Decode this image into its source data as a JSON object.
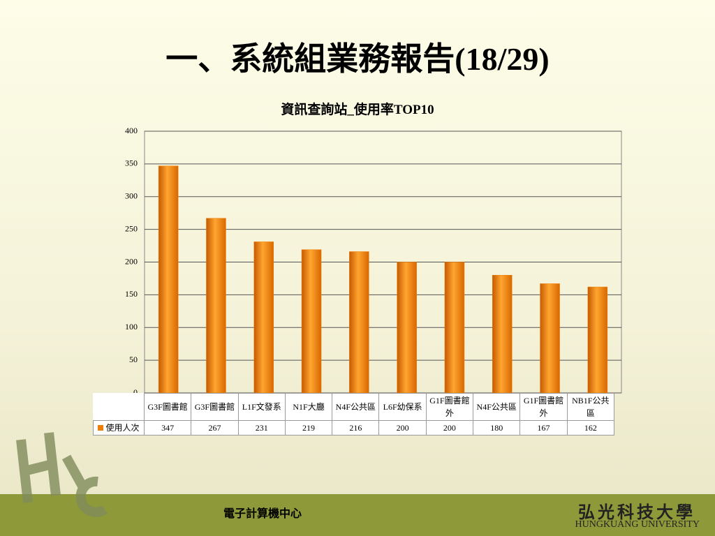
{
  "page_title": "一、系統組業務報告(18/29)",
  "chart_data": {
    "type": "bar",
    "title": "資訊查詢站_使用率TOP10",
    "categories": [
      "G3F圖書館",
      "G3F圖書館",
      "L1F文發系",
      "N1F大廳",
      "N4F公共區",
      "L6F幼保系",
      "G1F圖書館外",
      "N4F公共區",
      "G1F圖書館外",
      "NB1F公共區"
    ],
    "series": [
      {
        "name": "使用人次",
        "color": "#f07f09",
        "values": [
          347,
          267,
          231,
          219,
          216,
          200,
          200,
          180,
          167,
          162
        ]
      }
    ],
    "ylim": [
      0,
      400
    ],
    "yticks": [
      0,
      50,
      100,
      150,
      200,
      250,
      300,
      350,
      400
    ],
    "grid": true
  },
  "footer": {
    "center": "電子計算機中心",
    "university": "弘光科技大學",
    "university_en": "HUNGKUANG UNIVERSITY"
  }
}
